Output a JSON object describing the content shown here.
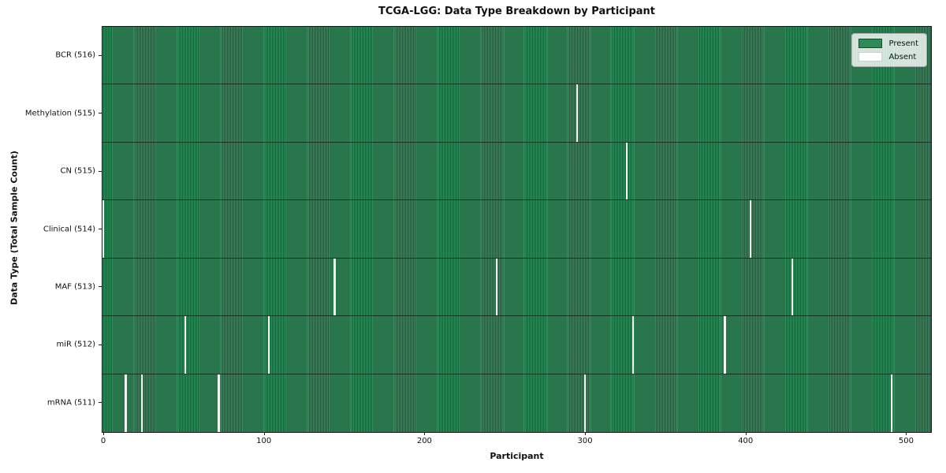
{
  "chart_data": {
    "type": "heatmap",
    "title": "TCGA-LGG: Data Type Breakdown by Participant",
    "xlabel": "Participant",
    "ylabel": "Data Type (Total Sample Count)",
    "n_participants": 516,
    "x_ticks": [
      0,
      100,
      200,
      300,
      400,
      500
    ],
    "legend": [
      {
        "label": "Present",
        "color": "#2e8b57"
      },
      {
        "label": "Absent",
        "color": "#ffffff"
      }
    ],
    "colors": {
      "present_light": "#35905f",
      "present_dark": "#1d5a39",
      "absent": "#f4f5f2",
      "row_separator": "rgba(0,0,0,0.55)"
    },
    "rows": [
      {
        "name": "BCR",
        "label": "BCR (516)",
        "total_samples": 516,
        "absent_participants": []
      },
      {
        "name": "Methylation",
        "label": "Methylation (515)",
        "total_samples": 515,
        "absent_participants": [
          295
        ]
      },
      {
        "name": "CN",
        "label": "CN (515)",
        "total_samples": 515,
        "absent_participants": [
          326
        ]
      },
      {
        "name": "Clinical",
        "label": "Clinical (514)",
        "total_samples": 514,
        "absent_participants": [
          0,
          403
        ]
      },
      {
        "name": "MAF",
        "label": "MAF (513)",
        "total_samples": 513,
        "absent_participants": [
          144,
          245,
          429
        ]
      },
      {
        "name": "miR",
        "label": "miR (512)",
        "total_samples": 512,
        "absent_participants": [
          51,
          103,
          330,
          387
        ]
      },
      {
        "name": "mRNA",
        "label": "mRNA (511)",
        "total_samples": 511,
        "absent_participants": [
          14,
          24,
          72,
          300,
          491
        ]
      }
    ]
  }
}
